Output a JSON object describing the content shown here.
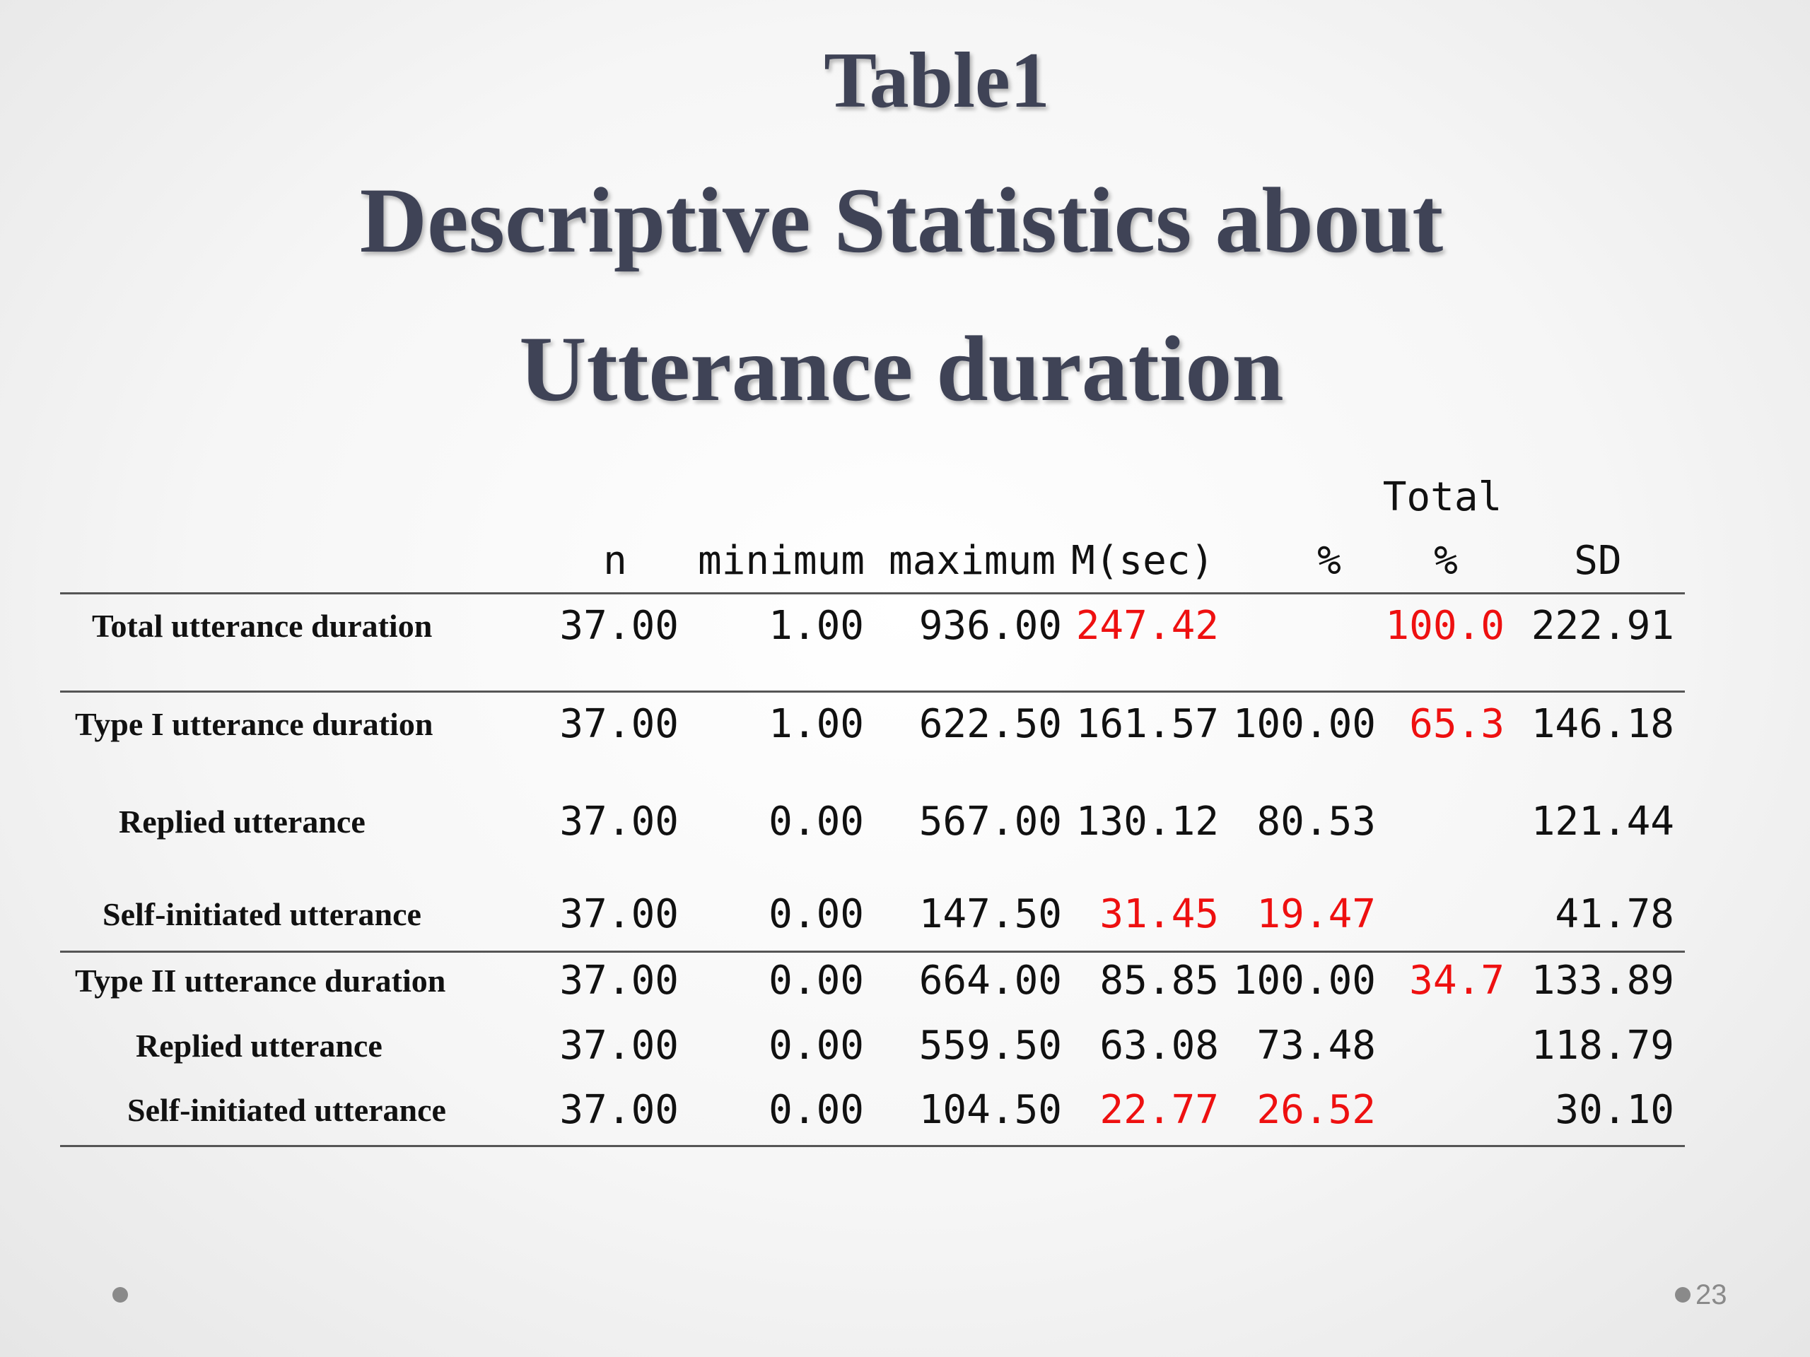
{
  "slide": {
    "label": "Table1",
    "title_line1": "Descriptive Statistics about",
    "title_line2": "Utterance duration",
    "page_number": "23"
  },
  "table": {
    "header_top": "Total",
    "headers": [
      "n",
      "minimum",
      "maximum",
      "M(sec)",
      "%",
      "%",
      "SD"
    ],
    "rows": [
      {
        "label": "Total utterance duration",
        "n": "37.00",
        "min": "1.00",
        "max": "936.00",
        "mean": "247.42",
        "pct": "",
        "total_pct": "100.0",
        "sd": "222.91"
      },
      {
        "label": "Type I utterance duration",
        "n": "37.00",
        "min": "1.00",
        "max": "622.50",
        "mean": "161.57",
        "pct": "100.00",
        "total_pct": "65.3",
        "sd": "146.18"
      },
      {
        "label": "Replied utterance",
        "n": "37.00",
        "min": "0.00",
        "max": "567.00",
        "mean": "130.12",
        "pct": "80.53",
        "total_pct": "",
        "sd": "121.44"
      },
      {
        "label": "Self-initiated utterance",
        "n": "37.00",
        "min": "0.00",
        "max": "147.50",
        "mean": "31.45",
        "pct": "19.47",
        "total_pct": "",
        "sd": "41.78"
      },
      {
        "label": "Type II utterance duration",
        "n": "37.00",
        "min": "0.00",
        "max": "664.00",
        "mean": "85.85",
        "pct": "100.00",
        "total_pct": "34.7",
        "sd": "133.89"
      },
      {
        "label": "Replied utterance",
        "n": "37.00",
        "min": "0.00",
        "max": "559.50",
        "mean": "63.08",
        "pct": "73.48",
        "total_pct": "",
        "sd": "118.79"
      },
      {
        "label": "Self-initiated utterance",
        "n": "37.00",
        "min": "0.00",
        "max": "104.50",
        "mean": "22.77",
        "pct": "26.52",
        "total_pct": "",
        "sd": "30.10"
      }
    ],
    "highlight_color": "#ee1010"
  }
}
